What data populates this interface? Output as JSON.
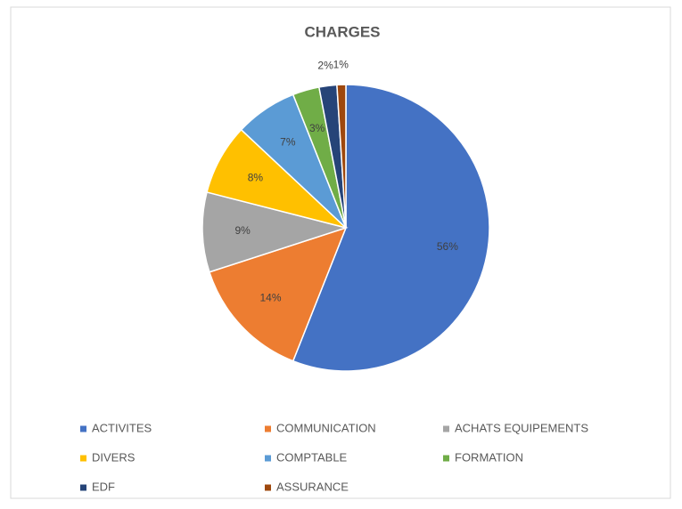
{
  "chart_data": {
    "type": "pie",
    "title": "CHARGES",
    "categories": [
      "ACTIVITES",
      "COMMUNICATION",
      "ACHATS EQUIPEMENTS",
      "DIVERS",
      "COMPTABLE",
      "FORMATION",
      "EDF",
      "ASSURANCE"
    ],
    "values": [
      56,
      14,
      9,
      8,
      7,
      3,
      2,
      1
    ],
    "value_labels": [
      "56%",
      "14%",
      "9%",
      "8%",
      "7%",
      "3%",
      "2%",
      "1%"
    ],
    "colors": [
      "#4472c4",
      "#ed7d31",
      "#a5a5a5",
      "#ffc000",
      "#5b9bd5",
      "#70ad47",
      "#264478",
      "#9e480e"
    ],
    "legend": "bottom"
  }
}
